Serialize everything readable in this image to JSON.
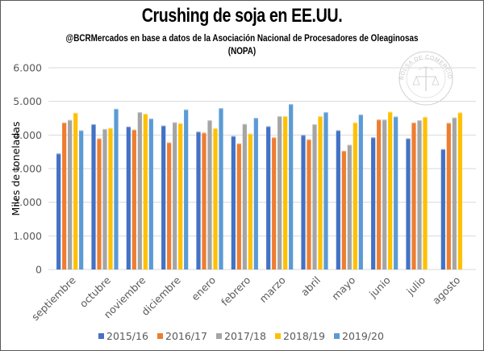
{
  "chart_data": {
    "type": "bar",
    "title": "Crushing de soja en EE.UU.",
    "subtitle": "@BCRMercados  en base a datos de la Asociación Nacional de Procesadores de Oleaginosas (NOPA)",
    "xlabel": "",
    "ylabel": "Miles de toneladas",
    "ylim": [
      0,
      6000
    ],
    "yticks": [
      0,
      1000,
      2000,
      3000,
      4000,
      5000,
      6000
    ],
    "ytick_labels": [
      "0",
      "1.000",
      "2.000",
      "3.000",
      "4.000",
      "5.000",
      "6.000"
    ],
    "grid": true,
    "legend_position": "bottom",
    "categories": [
      "septiembre",
      "octubre",
      "noviembre",
      "diciembre",
      "enero",
      "febrero",
      "marzo",
      "abril",
      "mayo",
      "junio",
      "julio",
      "agosto"
    ],
    "series": [
      {
        "name": "2015/16",
        "color": "#4472C4",
        "values": [
          3450,
          4320,
          4250,
          4280,
          4100,
          3970,
          4260,
          4000,
          4140,
          3930,
          3900,
          3580
        ]
      },
      {
        "name": "2016/17",
        "color": "#ED7D31",
        "values": [
          4370,
          3900,
          4160,
          3780,
          4070,
          3750,
          3930,
          3870,
          3530,
          4460,
          4370,
          4360
        ]
      },
      {
        "name": "2017/18",
        "color": "#A5A5A5",
        "values": [
          4450,
          4180,
          4680,
          4380,
          4440,
          4330,
          4560,
          4320,
          3710,
          4460,
          4440,
          4520
        ]
      },
      {
        "name": "2018/19",
        "color": "#FFC000",
        "values": [
          4660,
          4210,
          4630,
          4350,
          4200,
          4040,
          4560,
          4560,
          4370,
          4690,
          4540,
          4670
        ]
      },
      {
        "name": "2019/20",
        "color": "#5B9BD5",
        "values": [
          4140,
          4780,
          4490,
          4760,
          4800,
          4510,
          4920,
          4680,
          4610,
          4550,
          null,
          null
        ]
      }
    ]
  },
  "watermark": {
    "text": "BOLSA DE COMERCIO DE ROSARIO",
    "icon": "caduceus-scales-seal-icon"
  },
  "colors": {
    "gridline": "#D9D9D9",
    "tick_text": "#595959",
    "border": "#595959"
  }
}
